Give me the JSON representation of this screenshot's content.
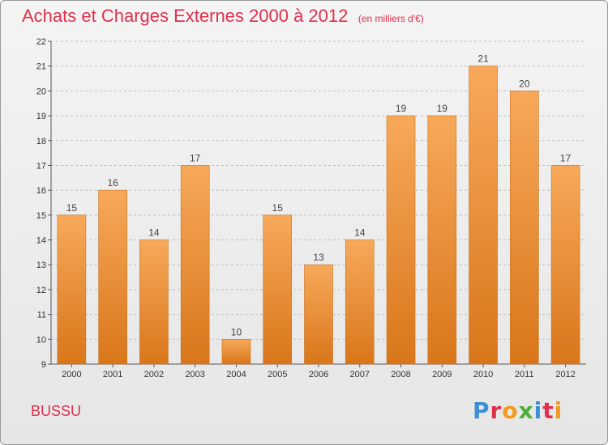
{
  "header": {
    "title": "Achats et Charges Externes 2000 à 2012",
    "subtitle": "(en milliers d'€)"
  },
  "footer": {
    "city": "BUSSU",
    "brand": "Proxiti",
    "brand_letters": [
      {
        "char": "P",
        "color": "#3b8fd6"
      },
      {
        "char": "r",
        "color": "#e0304c"
      },
      {
        "char": "o",
        "color": "#f29a1f"
      },
      {
        "char": "x",
        "color": "#4caf3a"
      },
      {
        "char": "i",
        "color": "#3b8fd6"
      },
      {
        "char": "t",
        "color": "#e0304c"
      },
      {
        "char": "i",
        "color": "#f29a1f"
      }
    ]
  },
  "colors": {
    "bar_top": "#f7a95a",
    "bar_bottom": "#d9761a",
    "grid": "#bdbdbd",
    "axis": "#555555"
  },
  "chart_data": {
    "type": "bar",
    "title": "Achats et Charges Externes 2000 à 2012",
    "subtitle": "(en milliers d'€)",
    "categories": [
      "2000",
      "2001",
      "2002",
      "2003",
      "2004",
      "2005",
      "2006",
      "2007",
      "2008",
      "2009",
      "2010",
      "2011",
      "2012"
    ],
    "values": [
      15,
      16,
      14,
      17,
      10,
      15,
      13,
      14,
      19,
      19,
      21,
      20,
      17
    ],
    "ylim": [
      9,
      22
    ],
    "yticks": [
      9,
      10,
      11,
      12,
      13,
      14,
      15,
      16,
      17,
      18,
      19,
      20,
      21,
      22
    ],
    "grid": true,
    "grid_style": "dashed-horizontal",
    "data_labels": true
  }
}
